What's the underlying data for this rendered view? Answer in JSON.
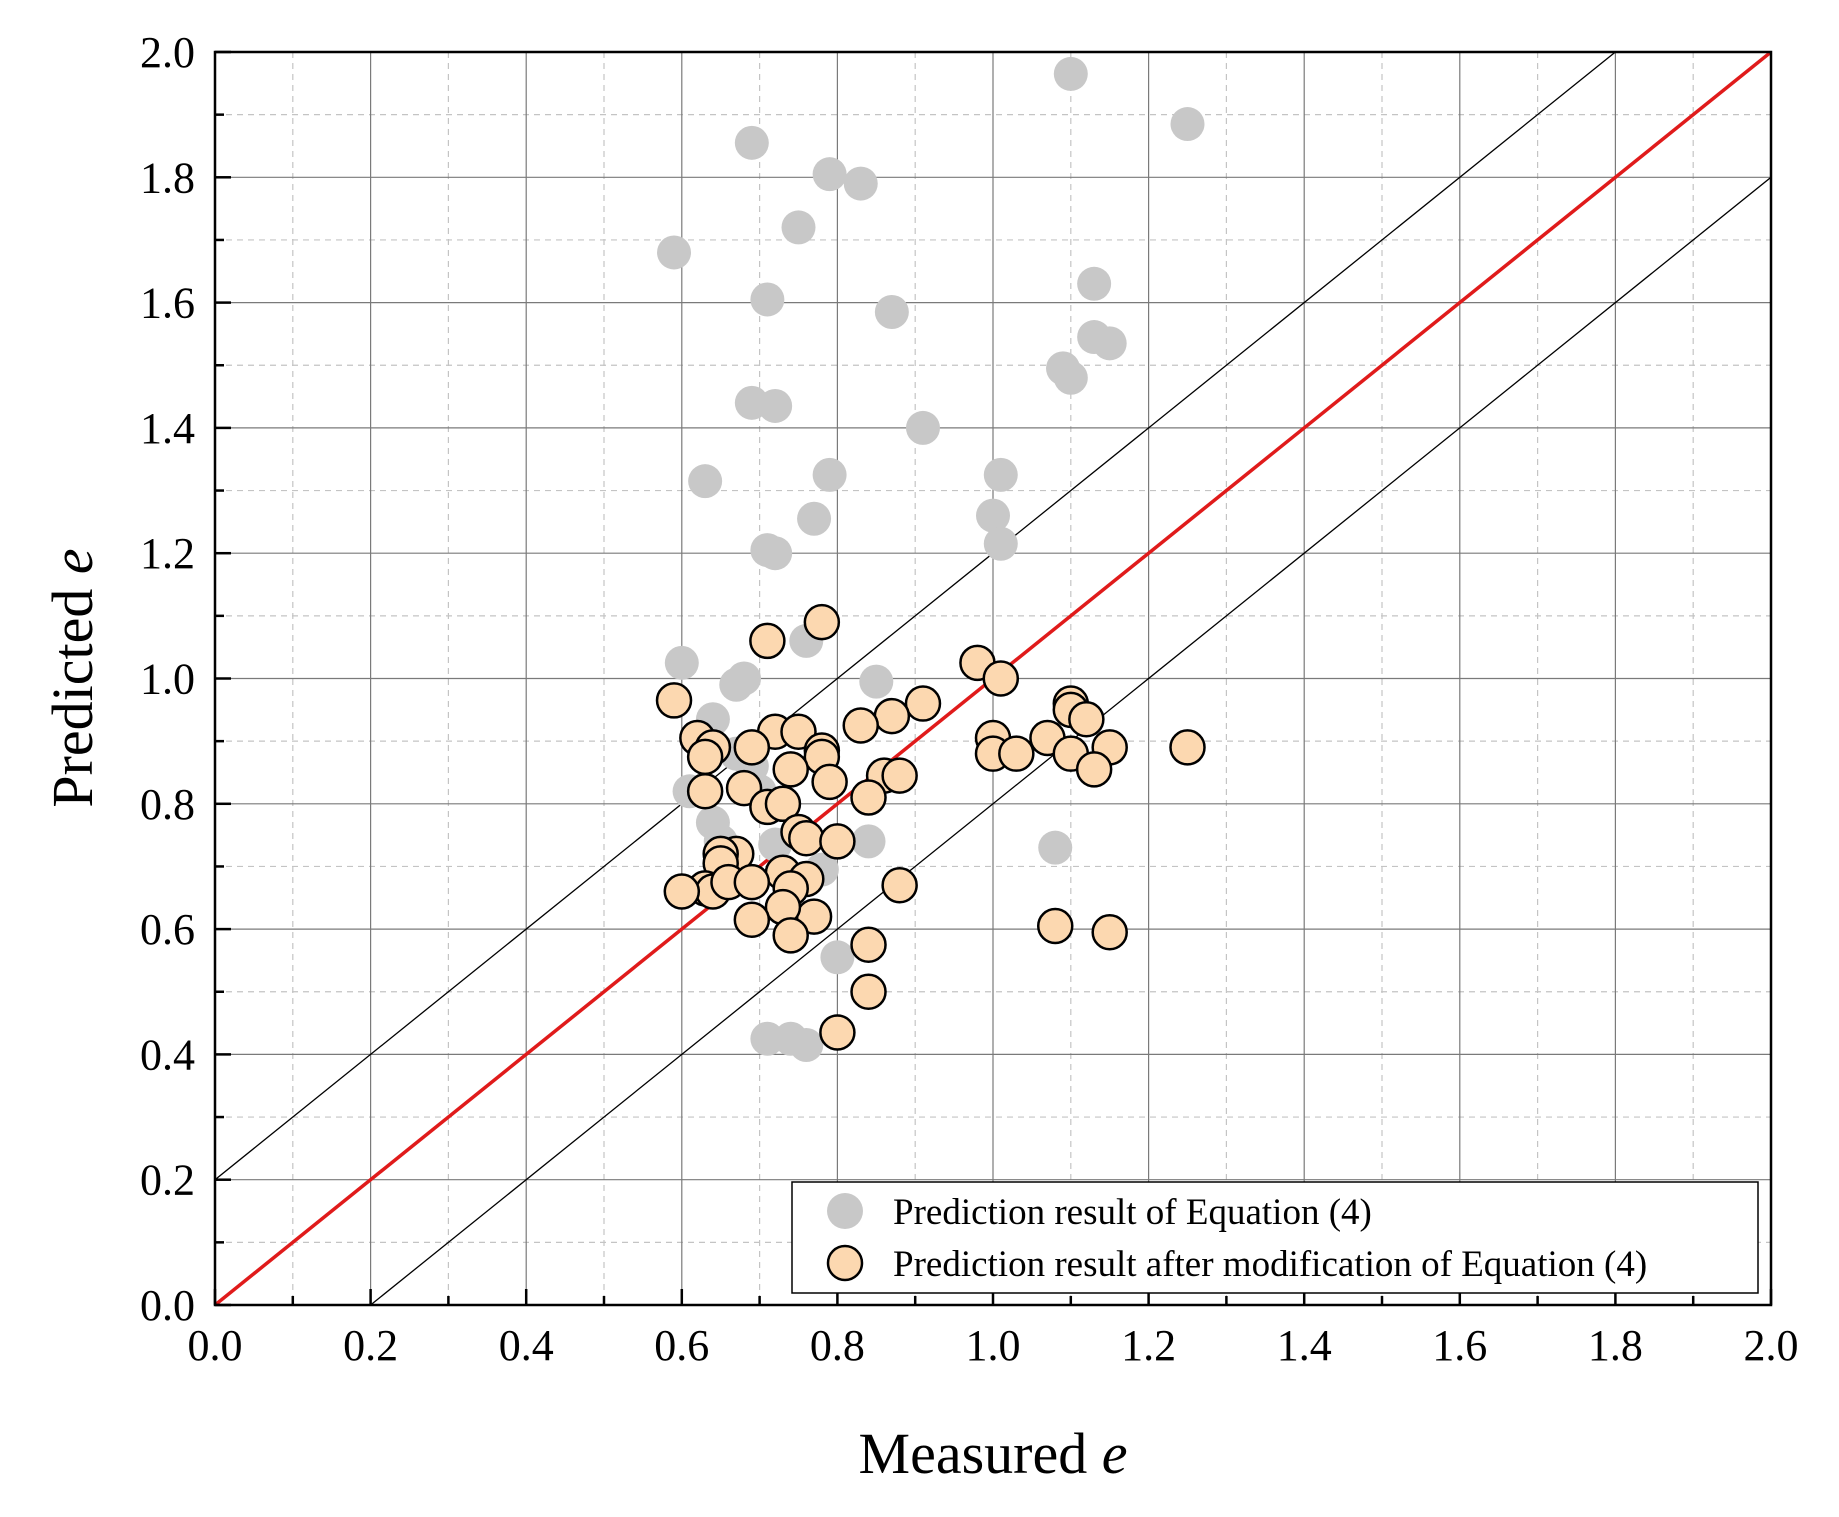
{
  "chart_data": {
    "type": "scatter",
    "xlabel_prefix": "Measured ",
    "xlabel_var": "e",
    "ylabel_prefix": "Predicted ",
    "ylabel_var": "e",
    "xlim": [
      0,
      2
    ],
    "ylim": [
      0,
      2
    ],
    "major_step": 0.2,
    "minor_step": 0.1,
    "grid": true,
    "tick_labels": [
      "0.0",
      "0.2",
      "0.4",
      "0.6",
      "0.8",
      "1.0",
      "1.2",
      "1.4",
      "1.6",
      "1.8",
      "2.0"
    ],
    "reference_lines": [
      {
        "name": "identity",
        "slope": 1,
        "intercept": 0,
        "color": "#e01b1b"
      },
      {
        "name": "upper-bound",
        "slope": 1,
        "intercept": 0.2,
        "color": "#000000"
      },
      {
        "name": "lower-bound",
        "slope": 1,
        "intercept": -0.2,
        "color": "#000000"
      }
    ],
    "legend_position": "bottom-right",
    "series": [
      {
        "name": "Prediction result of Equation (4)",
        "fill": "#c8c8c8",
        "stroke": "none",
        "points": [
          [
            0.59,
            1.68
          ],
          [
            0.69,
            1.855
          ],
          [
            0.79,
            1.805
          ],
          [
            0.83,
            1.79
          ],
          [
            0.75,
            1.72
          ],
          [
            0.71,
            1.605
          ],
          [
            0.87,
            1.585
          ],
          [
            1.1,
            1.965
          ],
          [
            1.25,
            1.885
          ],
          [
            1.13,
            1.63
          ],
          [
            1.13,
            1.545
          ],
          [
            1.15,
            1.535
          ],
          [
            1.09,
            1.495
          ],
          [
            1.1,
            1.48
          ],
          [
            0.69,
            1.44
          ],
          [
            0.72,
            1.435
          ],
          [
            0.91,
            1.4
          ],
          [
            0.63,
            1.315
          ],
          [
            0.79,
            1.325
          ],
          [
            1.01,
            1.325
          ],
          [
            1.0,
            1.26
          ],
          [
            0.77,
            1.255
          ],
          [
            1.01,
            1.215
          ],
          [
            0.71,
            1.205
          ],
          [
            0.72,
            1.2
          ],
          [
            0.76,
            1.06
          ],
          [
            0.6,
            1.025
          ],
          [
            0.68,
            1.0
          ],
          [
            0.67,
            0.99
          ],
          [
            0.85,
            0.995
          ],
          [
            0.64,
            0.935
          ],
          [
            0.67,
            0.88
          ],
          [
            0.69,
            0.86
          ],
          [
            0.7,
            0.82
          ],
          [
            0.61,
            0.82
          ],
          [
            0.64,
            0.77
          ],
          [
            0.65,
            0.74
          ],
          [
            0.84,
            0.74
          ],
          [
            0.72,
            0.735
          ],
          [
            1.08,
            0.73
          ],
          [
            0.78,
            0.695
          ],
          [
            0.8,
            0.555
          ],
          [
            0.71,
            0.425
          ],
          [
            0.74,
            0.425
          ],
          [
            0.76,
            0.415
          ]
        ]
      },
      {
        "name": "Prediction result after modification of Equation (4)",
        "fill": "#fcd8b0",
        "stroke": "#000000",
        "points": [
          [
            0.78,
            1.09
          ],
          [
            0.71,
            1.06
          ],
          [
            0.98,
            1.025
          ],
          [
            1.01,
            1.0
          ],
          [
            0.59,
            0.965
          ],
          [
            0.91,
            0.96
          ],
          [
            0.87,
            0.94
          ],
          [
            0.83,
            0.925
          ],
          [
            0.72,
            0.915
          ],
          [
            0.75,
            0.915
          ],
          [
            0.62,
            0.905
          ],
          [
            0.64,
            0.89
          ],
          [
            0.63,
            0.875
          ],
          [
            0.69,
            0.89
          ],
          [
            0.78,
            0.885
          ],
          [
            0.78,
            0.875
          ],
          [
            0.74,
            0.855
          ],
          [
            0.79,
            0.835
          ],
          [
            0.68,
            0.825
          ],
          [
            0.63,
            0.82
          ],
          [
            0.86,
            0.845
          ],
          [
            0.88,
            0.845
          ],
          [
            0.84,
            0.81
          ],
          [
            0.71,
            0.795
          ],
          [
            0.73,
            0.8
          ],
          [
            1.1,
            0.96
          ],
          [
            1.1,
            0.95
          ],
          [
            1.12,
            0.935
          ],
          [
            1.0,
            0.905
          ],
          [
            1.07,
            0.905
          ],
          [
            1.1,
            0.88
          ],
          [
            1.0,
            0.88
          ],
          [
            1.03,
            0.88
          ],
          [
            1.15,
            0.89
          ],
          [
            1.25,
            0.89
          ],
          [
            1.13,
            0.855
          ],
          [
            0.75,
            0.755
          ],
          [
            0.76,
            0.745
          ],
          [
            0.8,
            0.74
          ],
          [
            0.67,
            0.72
          ],
          [
            0.65,
            0.72
          ],
          [
            0.65,
            0.705
          ],
          [
            0.73,
            0.69
          ],
          [
            0.76,
            0.68
          ],
          [
            0.63,
            0.665
          ],
          [
            0.64,
            0.66
          ],
          [
            0.6,
            0.66
          ],
          [
            0.66,
            0.675
          ],
          [
            0.69,
            0.675
          ],
          [
            0.88,
            0.67
          ],
          [
            0.74,
            0.665
          ],
          [
            0.77,
            0.62
          ],
          [
            0.73,
            0.635
          ],
          [
            0.69,
            0.615
          ],
          [
            0.74,
            0.59
          ],
          [
            1.08,
            0.605
          ],
          [
            1.15,
            0.595
          ],
          [
            0.84,
            0.575
          ],
          [
            0.84,
            0.5
          ],
          [
            0.8,
            0.435
          ]
        ]
      }
    ]
  }
}
